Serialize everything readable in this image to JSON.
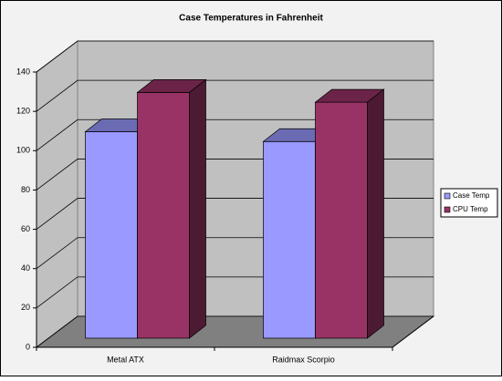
{
  "chart_data": {
    "type": "bar3d",
    "title": "Case Temperatures in Fahrenheit",
    "categories": [
      "Metal ATX",
      "Raidmax Scorpio"
    ],
    "series": [
      {
        "name": "Case Temp",
        "color": "#9999ff",
        "values": [
          105,
          100
        ]
      },
      {
        "name": "CPU Temp",
        "color": "#993366",
        "values": [
          125,
          120
        ]
      }
    ],
    "ylim": [
      0,
      140
    ],
    "yticks": [
      0,
      20,
      40,
      60,
      80,
      100,
      120,
      140
    ],
    "grid": true,
    "legend": "right"
  }
}
